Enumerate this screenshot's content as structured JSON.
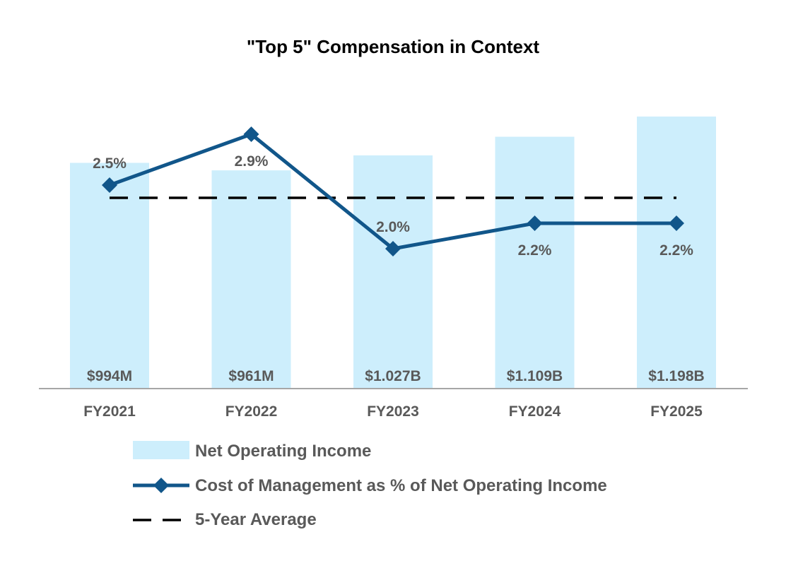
{
  "chart_data": {
    "type": "bar+line",
    "title": "\"Top 5\" Compensation in Context",
    "categories": [
      "FY2021",
      "FY2022",
      "FY2023",
      "FY2024",
      "FY2025"
    ],
    "bar_series": {
      "name": "Net Operating Income",
      "values_billions": [
        0.994,
        0.961,
        1.027,
        1.109,
        1.198
      ],
      "labels": [
        "$994M",
        "$961M",
        "$1.027B",
        "$1.109B",
        "$1.198B"
      ]
    },
    "line_series": {
      "name": "Cost of Management as % of Net Operating Income",
      "values": [
        2.5,
        2.9,
        2.0,
        2.2,
        2.2
      ],
      "labels": [
        "2.5%",
        "2.9%",
        "2.0%",
        "2.2%",
        "2.2%"
      ]
    },
    "average_series": {
      "name": "5-Year Average",
      "value": 2.4
    },
    "bar_axis_range_billions": [
      0,
      1.4
    ],
    "line_axis_range_percent": [
      0.9,
      3.4
    ],
    "gridlines": false,
    "legend_position": "bottom"
  },
  "colors": {
    "bar": "#cdeefc",
    "line": "#11568a",
    "average": "#000000",
    "axis": "#a6a6a6",
    "text": "#595959",
    "title": "#000000"
  },
  "icons": {
    "line_marker": "diamond-marker",
    "legend_bar": "rectangle-swatch",
    "legend_average": "dashed-line"
  }
}
